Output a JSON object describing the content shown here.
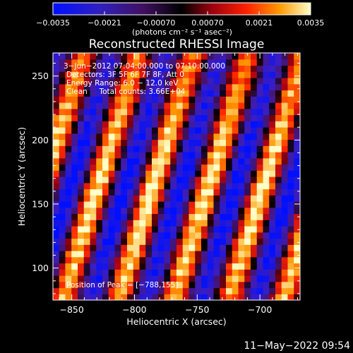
{
  "chart_data": {
    "type": "heatmap",
    "title": "Reconstructed RHESSI Image",
    "xlabel": "Heliocentric X (arcsec)",
    "ylabel": "Heliocentric Y (arcsec)",
    "xlim": [
      -865,
      -668
    ],
    "ylim": [
      75,
      268
    ],
    "x_ticks": [
      -850,
      -800,
      -750,
      -700
    ],
    "y_ticks": [
      100,
      150,
      200,
      250
    ],
    "colorbar": {
      "ticks": [
        -0.0035,
        -0.0021,
        -0.0007,
        0.0007,
        0.0021,
        0.0035
      ],
      "tick_labels": [
        "−0.0035",
        "−0.0021",
        "−0.00070",
        "0.00070",
        "0.0021",
        "0.0035"
      ],
      "range": [
        -0.0035,
        0.0035
      ],
      "units_label": "(photons cm⁻² s⁻¹ asec⁻²)"
    },
    "annotations": [
      "3−Jun−2012 07:04:00.000 to 07:10:00.000",
      "Detectors: 3F 5F 6F 7F 8F, Att 0",
      "Energy Range: 6.0 − 12.0 keV",
      "Clean     Total counts: 3.66E+04",
      "Position of Peak = [−788,155]"
    ],
    "peak": {
      "x": -788,
      "y": 155,
      "value": 0.0035
    },
    "colors": {
      "low": "#0000ff",
      "mid_low": "#5a2a8a",
      "zero": "#000000",
      "mid": "#c01010",
      "high": "#ff8000",
      "max": "#ffffa0"
    }
  },
  "footer": {
    "timestamp": "11−May−2022 09:54"
  }
}
